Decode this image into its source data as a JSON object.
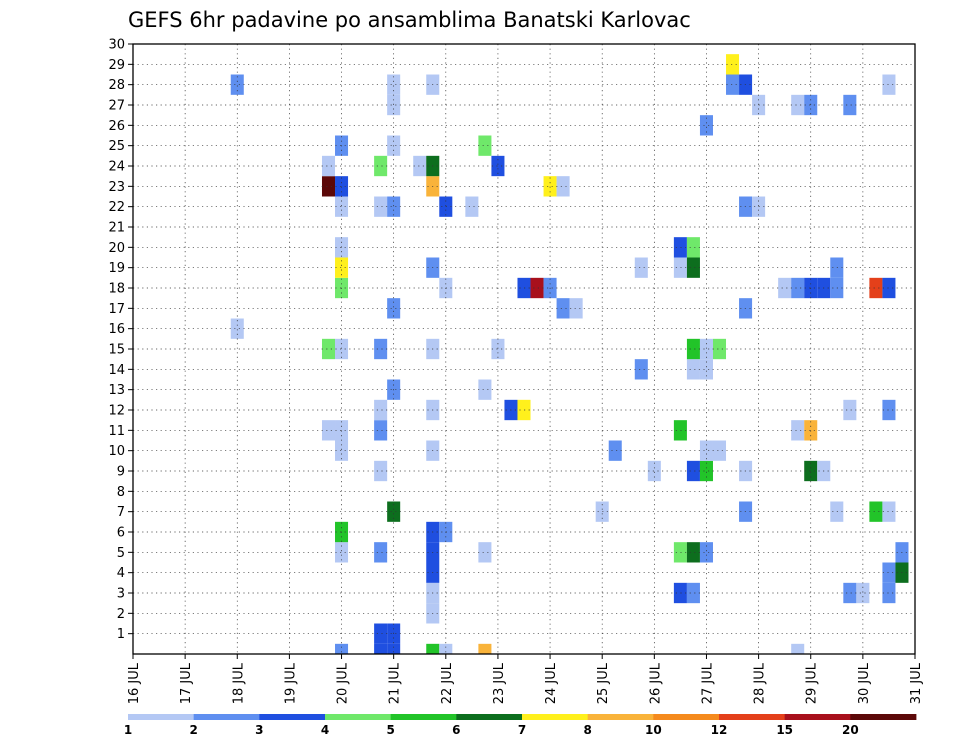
{
  "chart_data": {
    "type": "heatmap",
    "title": "GEFS 6hr padavine po ansamblima Banatski Karlovac",
    "x_tick_labels": [
      "16 JUL",
      "17 JUL",
      "18 JUL",
      "19 JUL",
      "20 JUL",
      "21 JUL",
      "22 JUL",
      "23 JUL",
      "24 JUL",
      "25 JUL",
      "26 JUL",
      "27 JUL",
      "28 JUL",
      "29 JUL",
      "30 JUL",
      "31 JUL"
    ],
    "y_tick_labels": [
      "1",
      "2",
      "3",
      "4",
      "5",
      "6",
      "7",
      "8",
      "9",
      "10",
      "11",
      "12",
      "13",
      "14",
      "15",
      "16",
      "17",
      "18",
      "19",
      "20",
      "21",
      "22",
      "23",
      "24",
      "25",
      "26",
      "27",
      "28",
      "29",
      "30"
    ],
    "ylim": [
      0,
      30
    ],
    "xlim_days": [
      16,
      31
    ],
    "grid": true,
    "colorbar_labels": [
      "1",
      "2",
      "3",
      "4",
      "5",
      "6",
      "7",
      "8",
      "10",
      "12",
      "15",
      "20"
    ],
    "colorbar_colors": [
      "#b4c8f4",
      "#5f8ff0",
      "#1f4fe0",
      "#6fe86a",
      "#22c429",
      "#0d6e1e",
      "#fff01c",
      "#f9b33a",
      "#f58a1d",
      "#e4401a",
      "#a8101c",
      "#5c0808"
    ],
    "cell_day_width": 0.25,
    "cells": [
      {
        "day": 20.75,
        "member": 1,
        "color": "#1f4fe0"
      },
      {
        "day": 21.0,
        "member": 1,
        "color": "#1f4fe0"
      },
      {
        "day": 20.75,
        "member": 0,
        "color": "#1f4fe0"
      },
      {
        "day": 21.0,
        "member": 0,
        "color": "#1f4fe0"
      },
      {
        "day": 20.0,
        "member": 0,
        "color": "#5f8ff0"
      },
      {
        "day": 21.75,
        "member": 0,
        "color": "#22c429"
      },
      {
        "day": 22.0,
        "member": 0,
        "color": "#b4c8f4"
      },
      {
        "day": 22.75,
        "member": 0,
        "color": "#f9b33a"
      },
      {
        "day": 28.75,
        "member": 0,
        "color": "#b4c8f4"
      },
      {
        "day": 21.75,
        "member": 2,
        "color": "#b4c8f4"
      },
      {
        "day": 21.75,
        "member": 3,
        "color": "#b4c8f4"
      },
      {
        "day": 21.75,
        "member": 4,
        "color": "#1f4fe0"
      },
      {
        "day": 21.75,
        "member": 5,
        "color": "#1f4fe0"
      },
      {
        "day": 21.75,
        "member": 6,
        "color": "#1f4fe0"
      },
      {
        "day": 22.0,
        "member": 6,
        "color": "#5f8ff0"
      },
      {
        "day": 26.5,
        "member": 3,
        "color": "#1f4fe0"
      },
      {
        "day": 26.75,
        "member": 3,
        "color": "#5f8ff0"
      },
      {
        "day": 29.75,
        "member": 3,
        "color": "#5f8ff0"
      },
      {
        "day": 30.0,
        "member": 3,
        "color": "#b4c8f4"
      },
      {
        "day": 30.5,
        "member": 3,
        "color": "#5f8ff0"
      },
      {
        "day": 30.5,
        "member": 4,
        "color": "#5f8ff0"
      },
      {
        "day": 30.75,
        "member": 4,
        "color": "#0d6e1e"
      },
      {
        "day": 20.0,
        "member": 5,
        "color": "#b4c8f4"
      },
      {
        "day": 20.75,
        "member": 5,
        "color": "#5f8ff0"
      },
      {
        "day": 22.75,
        "member": 5,
        "color": "#b4c8f4"
      },
      {
        "day": 26.5,
        "member": 5,
        "color": "#6fe86a"
      },
      {
        "day": 26.75,
        "member": 5,
        "color": "#0d6e1e"
      },
      {
        "day": 27.0,
        "member": 5,
        "color": "#5f8ff0"
      },
      {
        "day": 30.75,
        "member": 5,
        "color": "#5f8ff0"
      },
      {
        "day": 20.0,
        "member": 6,
        "color": "#22c429"
      },
      {
        "day": 21.0,
        "member": 7,
        "color": "#0d6e1e"
      },
      {
        "day": 25.0,
        "member": 7,
        "color": "#b4c8f4"
      },
      {
        "day": 27.75,
        "member": 7,
        "color": "#5f8ff0"
      },
      {
        "day": 29.5,
        "member": 7,
        "color": "#b4c8f4"
      },
      {
        "day": 30.25,
        "member": 7,
        "color": "#22c429"
      },
      {
        "day": 30.5,
        "member": 7,
        "color": "#b4c8f4"
      },
      {
        "day": 20.75,
        "member": 9,
        "color": "#b4c8f4"
      },
      {
        "day": 26.0,
        "member": 9,
        "color": "#b4c8f4"
      },
      {
        "day": 26.75,
        "member": 9,
        "color": "#1f4fe0"
      },
      {
        "day": 27.0,
        "member": 9,
        "color": "#22c429"
      },
      {
        "day": 27.75,
        "member": 9,
        "color": "#b4c8f4"
      },
      {
        "day": 29.0,
        "member": 9,
        "color": "#0d6e1e"
      },
      {
        "day": 29.25,
        "member": 9,
        "color": "#b4c8f4"
      },
      {
        "day": 20.0,
        "member": 10,
        "color": "#b4c8f4"
      },
      {
        "day": 21.75,
        "member": 10,
        "color": "#b4c8f4"
      },
      {
        "day": 25.25,
        "member": 10,
        "color": "#5f8ff0"
      },
      {
        "day": 27.0,
        "member": 10,
        "color": "#b4c8f4"
      },
      {
        "day": 27.25,
        "member": 10,
        "color": "#b4c8f4"
      },
      {
        "day": 19.75,
        "member": 11,
        "color": "#b4c8f4"
      },
      {
        "day": 20.0,
        "member": 11,
        "color": "#b4c8f4"
      },
      {
        "day": 20.75,
        "member": 11,
        "color": "#5f8ff0"
      },
      {
        "day": 26.5,
        "member": 11,
        "color": "#22c429"
      },
      {
        "day": 28.75,
        "member": 11,
        "color": "#b4c8f4"
      },
      {
        "day": 29.0,
        "member": 11,
        "color": "#f9b33a"
      },
      {
        "day": 20.75,
        "member": 12,
        "color": "#b4c8f4"
      },
      {
        "day": 21.75,
        "member": 12,
        "color": "#b4c8f4"
      },
      {
        "day": 23.25,
        "member": 12,
        "color": "#1f4fe0"
      },
      {
        "day": 23.5,
        "member": 12,
        "color": "#fff01c"
      },
      {
        "day": 29.75,
        "member": 12,
        "color": "#b4c8f4"
      },
      {
        "day": 30.5,
        "member": 12,
        "color": "#5f8ff0"
      },
      {
        "day": 21.0,
        "member": 13,
        "color": "#5f8ff0"
      },
      {
        "day": 22.75,
        "member": 13,
        "color": "#b4c8f4"
      },
      {
        "day": 25.75,
        "member": 14,
        "color": "#5f8ff0"
      },
      {
        "day": 26.75,
        "member": 14,
        "color": "#b4c8f4"
      },
      {
        "day": 27.0,
        "member": 14,
        "color": "#b4c8f4"
      },
      {
        "day": 19.75,
        "member": 15,
        "color": "#6fe86a"
      },
      {
        "day": 20.0,
        "member": 15,
        "color": "#b4c8f4"
      },
      {
        "day": 20.75,
        "member": 15,
        "color": "#5f8ff0"
      },
      {
        "day": 21.75,
        "member": 15,
        "color": "#b4c8f4"
      },
      {
        "day": 23.0,
        "member": 15,
        "color": "#b4c8f4"
      },
      {
        "day": 26.75,
        "member": 15,
        "color": "#22c429"
      },
      {
        "day": 27.0,
        "member": 15,
        "color": "#b4c8f4"
      },
      {
        "day": 27.25,
        "member": 15,
        "color": "#6fe86a"
      },
      {
        "day": 18.0,
        "member": 16,
        "color": "#b4c8f4"
      },
      {
        "day": 21.0,
        "member": 17,
        "color": "#5f8ff0"
      },
      {
        "day": 24.25,
        "member": 17,
        "color": "#5f8ff0"
      },
      {
        "day": 24.5,
        "member": 17,
        "color": "#b4c8f4"
      },
      {
        "day": 27.75,
        "member": 17,
        "color": "#5f8ff0"
      },
      {
        "day": 20.0,
        "member": 18,
        "color": "#6fe86a"
      },
      {
        "day": 22.0,
        "member": 18,
        "color": "#b4c8f4"
      },
      {
        "day": 23.5,
        "member": 18,
        "color": "#1f4fe0"
      },
      {
        "day": 23.75,
        "member": 18,
        "color": "#a8101c"
      },
      {
        "day": 24.0,
        "member": 18,
        "color": "#5f8ff0"
      },
      {
        "day": 28.5,
        "member": 18,
        "color": "#b4c8f4"
      },
      {
        "day": 28.75,
        "member": 18,
        "color": "#5f8ff0"
      },
      {
        "day": 29.0,
        "member": 18,
        "color": "#1f4fe0"
      },
      {
        "day": 29.25,
        "member": 18,
        "color": "#1f4fe0"
      },
      {
        "day": 29.5,
        "member": 18,
        "color": "#5f8ff0"
      },
      {
        "day": 30.25,
        "member": 18,
        "color": "#e4401a"
      },
      {
        "day": 30.5,
        "member": 18,
        "color": "#1f4fe0"
      },
      {
        "day": 20.0,
        "member": 19,
        "color": "#fff01c"
      },
      {
        "day": 21.75,
        "member": 19,
        "color": "#5f8ff0"
      },
      {
        "day": 25.75,
        "member": 19,
        "color": "#b4c8f4"
      },
      {
        "day": 26.5,
        "member": 19,
        "color": "#b4c8f4"
      },
      {
        "day": 26.75,
        "member": 19,
        "color": "#0d6e1e"
      },
      {
        "day": 29.5,
        "member": 19,
        "color": "#5f8ff0"
      },
      {
        "day": 20.0,
        "member": 20,
        "color": "#b4c8f4"
      },
      {
        "day": 26.5,
        "member": 20,
        "color": "#1f4fe0"
      },
      {
        "day": 26.75,
        "member": 20,
        "color": "#6fe86a"
      },
      {
        "day": 20.0,
        "member": 22,
        "color": "#b4c8f4"
      },
      {
        "day": 20.75,
        "member": 22,
        "color": "#b4c8f4"
      },
      {
        "day": 21.0,
        "member": 22,
        "color": "#5f8ff0"
      },
      {
        "day": 22.0,
        "member": 22,
        "color": "#1f4fe0"
      },
      {
        "day": 22.5,
        "member": 22,
        "color": "#b4c8f4"
      },
      {
        "day": 27.75,
        "member": 22,
        "color": "#5f8ff0"
      },
      {
        "day": 28.0,
        "member": 22,
        "color": "#b4c8f4"
      },
      {
        "day": 19.75,
        "member": 23,
        "color": "#5c0808"
      },
      {
        "day": 20.0,
        "member": 23,
        "color": "#1f4fe0"
      },
      {
        "day": 21.75,
        "member": 23,
        "color": "#f9b33a"
      },
      {
        "day": 24.0,
        "member": 23,
        "color": "#fff01c"
      },
      {
        "day": 24.25,
        "member": 23,
        "color": "#b4c8f4"
      },
      {
        "day": 19.75,
        "member": 24,
        "color": "#b4c8f4"
      },
      {
        "day": 20.75,
        "member": 24,
        "color": "#6fe86a"
      },
      {
        "day": 21.5,
        "member": 24,
        "color": "#b4c8f4"
      },
      {
        "day": 21.75,
        "member": 24,
        "color": "#0d6e1e"
      },
      {
        "day": 23.0,
        "member": 24,
        "color": "#1f4fe0"
      },
      {
        "day": 20.0,
        "member": 25,
        "color": "#5f8ff0"
      },
      {
        "day": 21.0,
        "member": 25,
        "color": "#b4c8f4"
      },
      {
        "day": 22.75,
        "member": 25,
        "color": "#6fe86a"
      },
      {
        "day": 27.0,
        "member": 26,
        "color": "#5f8ff0"
      },
      {
        "day": 21.0,
        "member": 27,
        "color": "#b4c8f4"
      },
      {
        "day": 28.0,
        "member": 27,
        "color": "#b4c8f4"
      },
      {
        "day": 28.75,
        "member": 27,
        "color": "#b4c8f4"
      },
      {
        "day": 29.0,
        "member": 27,
        "color": "#5f8ff0"
      },
      {
        "day": 29.75,
        "member": 27,
        "color": "#5f8ff0"
      },
      {
        "day": 18.0,
        "member": 28,
        "color": "#5f8ff0"
      },
      {
        "day": 21.0,
        "member": 28,
        "color": "#b4c8f4"
      },
      {
        "day": 21.75,
        "member": 28,
        "color": "#b4c8f4"
      },
      {
        "day": 27.5,
        "member": 28,
        "color": "#5f8ff0"
      },
      {
        "day": 27.75,
        "member": 28,
        "color": "#1f4fe0"
      },
      {
        "day": 30.5,
        "member": 28,
        "color": "#b4c8f4"
      },
      {
        "day": 27.5,
        "member": 29,
        "color": "#fff01c"
      }
    ]
  }
}
